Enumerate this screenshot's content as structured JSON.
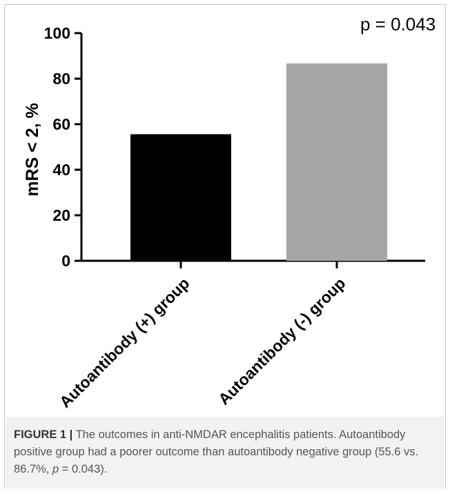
{
  "chart_data": {
    "type": "bar",
    "categories": [
      "Autoantibody (+) group",
      "Autoantibody (-) group"
    ],
    "values": [
      55.6,
      86.7
    ],
    "colors": [
      "#000000",
      "#a6a6a6"
    ],
    "ylabel": "mRS < 2, %",
    "ylim": [
      0,
      100
    ],
    "yticks": [
      0,
      20,
      40,
      60,
      80,
      100
    ],
    "annotation": "p = 0.043"
  },
  "caption": {
    "label": "FIGURE 1 |",
    "text": " The outcomes in anti-NMDAR encephalitis patients. Autoantibody positive group had a poorer outcome than autoantibody negative group (55.6 vs. 86.7%, ",
    "p_symbol": "p",
    "text_end": " = 0.043)."
  }
}
